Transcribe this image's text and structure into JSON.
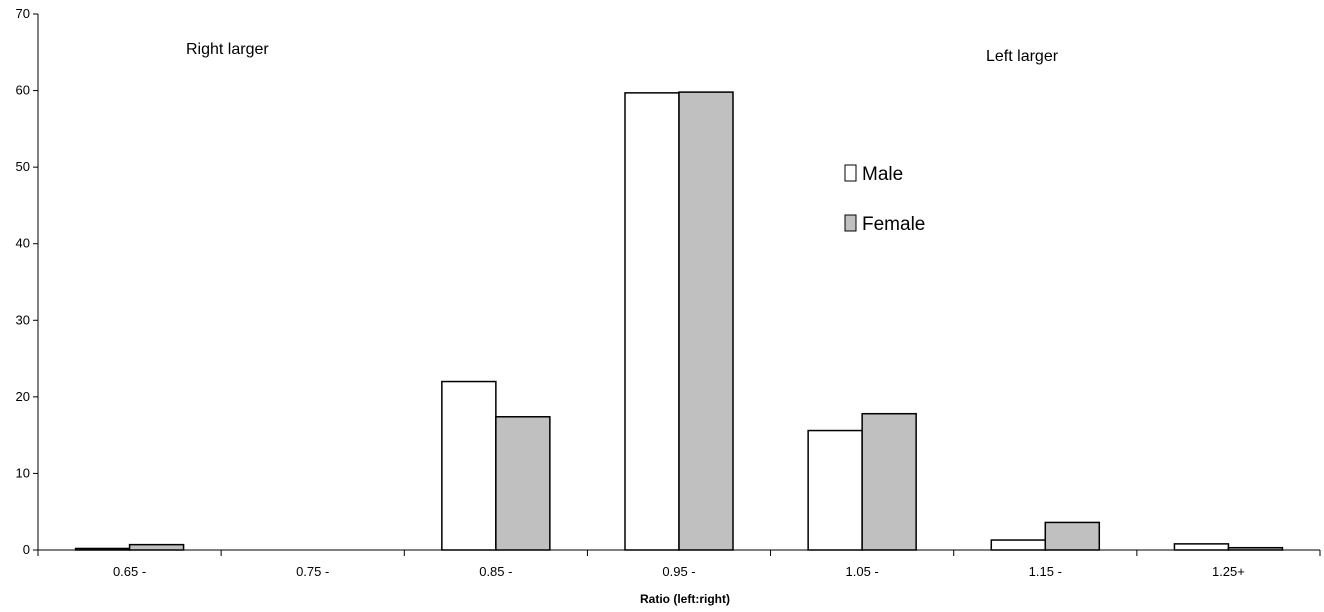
{
  "chart_data": {
    "type": "bar",
    "title": "",
    "xlabel": "Ratio (left:right)",
    "ylabel": "",
    "ylim": [
      0,
      70
    ],
    "yticks": [
      0,
      10,
      20,
      30,
      40,
      50,
      60,
      70
    ],
    "grid": false,
    "categories": [
      "0.65 -",
      "0.75 -",
      "0.85 -",
      "0.95 -",
      "1.05 -",
      "1.15 -",
      "1.25+"
    ],
    "series": [
      {
        "name": "Male",
        "color": "#ffffff",
        "values": [
          0.2,
          0,
          22.0,
          59.7,
          15.6,
          1.3,
          0.8
        ]
      },
      {
        "name": "Female",
        "color": "#c0c0c0",
        "values": [
          0.7,
          0,
          17.4,
          59.8,
          17.8,
          3.6,
          0.3
        ]
      }
    ],
    "annotations": [
      "Right larger",
      "Left larger"
    ],
    "legend": {
      "placement": "center-right"
    }
  }
}
